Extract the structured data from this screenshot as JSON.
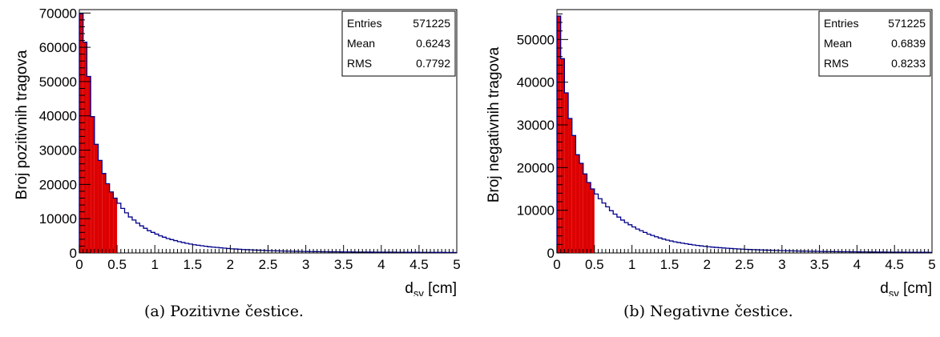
{
  "captions": [
    "(a) Pozitivne čestice.",
    "(b) Negativne čestice."
  ],
  "chart_data": [
    {
      "type": "histogram",
      "ylabel": "Broj pozitivnih tragova",
      "xlabel_main": "d",
      "xlabel_sub": "sv",
      "xlabel_unit": " [cm]",
      "xlim": [
        0,
        5
      ],
      "ylim": [
        0,
        71000
      ],
      "x_ticks": [
        "0",
        "0.5",
        "1",
        "1.5",
        "2",
        "2.5",
        "3",
        "3.5",
        "4",
        "4.5",
        "5"
      ],
      "y_ticks": [
        0,
        10000,
        20000,
        30000,
        40000,
        50000,
        60000,
        70000
      ],
      "bin_width": 0.05,
      "fill_below": 0.5,
      "line_color": "#00008b",
      "fill_color": "#dd0000",
      "stats": [
        {
          "label": "Entries",
          "value": "571225"
        },
        {
          "label": "Mean",
          "value": "0.6243"
        },
        {
          "label": "RMS",
          "value": "0.7792"
        }
      ],
      "values": [
        69800,
        61500,
        51500,
        39800,
        31700,
        27000,
        23200,
        20200,
        17800,
        16000,
        14500,
        13000,
        11700,
        10500,
        9600,
        8700,
        7900,
        7200,
        6500,
        6000,
        5500,
        5000,
        4600,
        4200,
        3900,
        3600,
        3300,
        3050,
        2800,
        2600,
        2400,
        2250,
        2100,
        1950,
        1800,
        1700,
        1600,
        1500,
        1400,
        1300,
        1200,
        1150,
        1080,
        1000,
        950,
        900,
        850,
        800,
        760,
        720,
        680,
        640,
        610,
        580,
        550,
        520,
        500,
        480,
        460,
        440,
        420,
        400,
        390,
        375,
        360,
        350,
        340,
        330,
        320,
        310,
        300,
        290,
        280,
        270,
        265,
        260,
        250,
        245,
        240,
        235,
        230,
        225,
        220,
        215,
        210,
        205,
        200,
        195,
        190,
        185,
        180,
        175,
        170,
        165,
        160,
        158,
        155,
        150,
        148,
        145
      ]
    },
    {
      "type": "histogram",
      "ylabel": "Broj negativnih tragova",
      "xlabel_main": "d",
      "xlabel_sub": "sv",
      "xlabel_unit": " [cm]",
      "xlim": [
        0,
        5
      ],
      "ylim": [
        0,
        57000
      ],
      "x_ticks": [
        "0",
        "0.5",
        "1",
        "1.5",
        "2",
        "2.5",
        "3",
        "3.5",
        "4",
        "4.5",
        "5"
      ],
      "y_ticks": [
        0,
        10000,
        20000,
        30000,
        40000,
        50000
      ],
      "bin_width": 0.05,
      "fill_below": 0.5,
      "line_color": "#00008b",
      "fill_color": "#dd0000",
      "stats": [
        {
          "label": "Entries",
          "value": "571225"
        },
        {
          "label": "Mean",
          "value": "0.6839"
        },
        {
          "label": "RMS",
          "value": "0.8233"
        }
      ],
      "values": [
        55500,
        45500,
        37500,
        31500,
        27500,
        23000,
        21000,
        18500,
        16500,
        15000,
        13800,
        12700,
        11700,
        10800,
        9900,
        9100,
        8400,
        7700,
        7100,
        6600,
        6100,
        5600,
        5200,
        4800,
        4400,
        4100,
        3800,
        3500,
        3250,
        3000,
        2800,
        2600,
        2450,
        2300,
        2150,
        2000,
        1880,
        1760,
        1650,
        1550,
        1450,
        1370,
        1300,
        1230,
        1160,
        1100,
        1040,
        990,
        940,
        890,
        850,
        810,
        770,
        735,
        700,
        670,
        640,
        610,
        585,
        560,
        535,
        510,
        490,
        470,
        450,
        430,
        415,
        400,
        385,
        370,
        355,
        342,
        330,
        318,
        306,
        295,
        285,
        275,
        265,
        256,
        248,
        240,
        232,
        225,
        218,
        211,
        205,
        199,
        193,
        188,
        183,
        178,
        173,
        168,
        164,
        160,
        156,
        152,
        148,
        145
      ]
    }
  ]
}
